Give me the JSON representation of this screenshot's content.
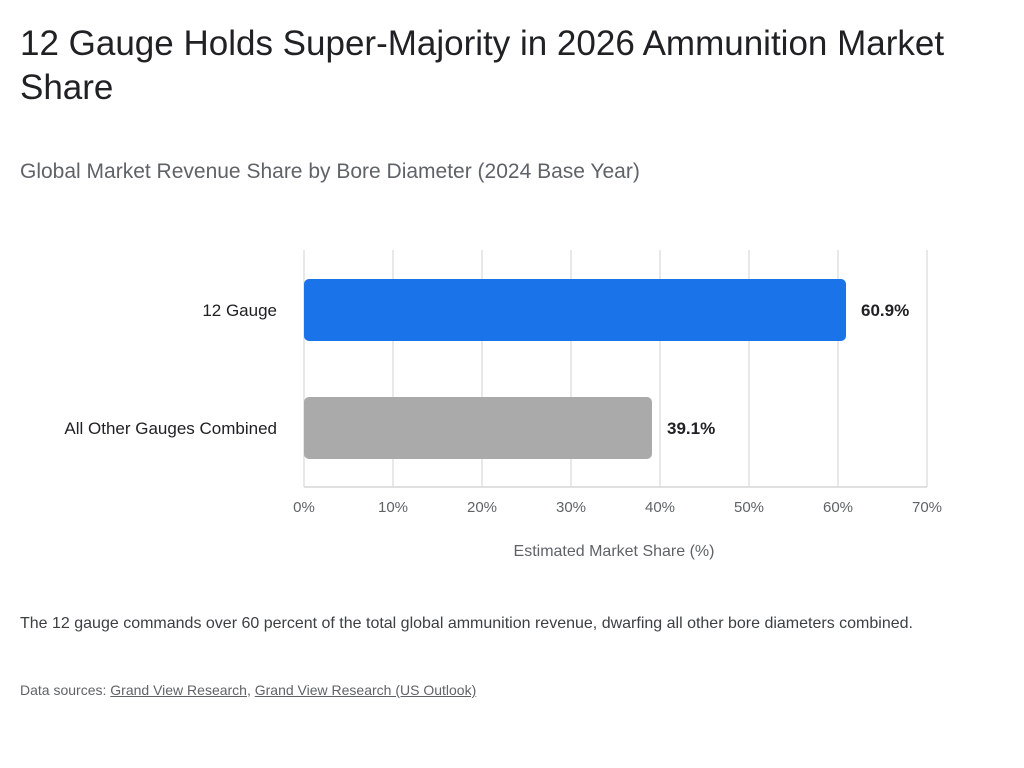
{
  "title": "12 Gauge Holds Super-Majority in 2026 Ammunition Market Share",
  "subtitle": "Global Market Revenue Share by Bore Diameter (2024 Base Year)",
  "caption": "The 12 gauge commands over 60 percent of the total global ammunition revenue, dwarfing all other bore diameters combined.",
  "sources": {
    "prefix": "Data sources: ",
    "links": [
      "Grand View Research",
      "Grand View Research (US Outlook)"
    ],
    "separator": ", "
  },
  "chart_data": {
    "type": "bar",
    "orientation": "horizontal",
    "categories": [
      "12 Gauge",
      "All Other Gauges Combined"
    ],
    "values": [
      60.9,
      39.1
    ],
    "data_labels": [
      "60.9%",
      "39.1%"
    ],
    "colors": [
      "#1a73e8",
      "#aaaaaa"
    ],
    "xlabel": "Estimated Market Share (%)",
    "ylabel": "",
    "xlim": [
      0,
      70
    ],
    "xticks": [
      0,
      10,
      20,
      30,
      40,
      50,
      60,
      70
    ],
    "xtick_labels": [
      "0%",
      "10%",
      "20%",
      "30%",
      "40%",
      "50%",
      "60%",
      "70%"
    ],
    "grid": true,
    "legend": "none"
  }
}
